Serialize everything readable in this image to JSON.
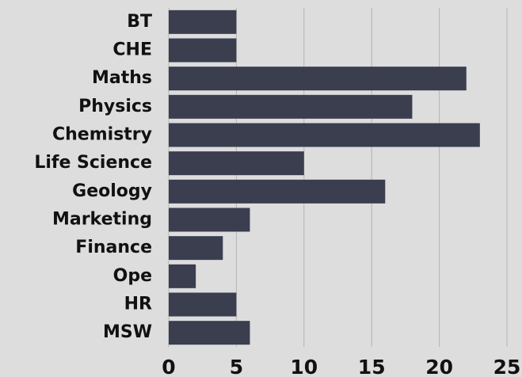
{
  "chart_data": {
    "type": "bar",
    "orientation": "horizontal",
    "categories": [
      "BT",
      "CHE",
      "Maths",
      "Physics",
      "Chemistry",
      "Life Science",
      "Geology",
      "Marketing",
      "Finance",
      "Ope",
      "HR",
      "MSW"
    ],
    "values": [
      5,
      5,
      22,
      18,
      23,
      10,
      16,
      6,
      4,
      2,
      5,
      6
    ],
    "color": "#3a3e4f",
    "xlim": [
      0,
      25
    ],
    "xticks": [
      0,
      5,
      10,
      15,
      20,
      25
    ],
    "grid": true
  }
}
